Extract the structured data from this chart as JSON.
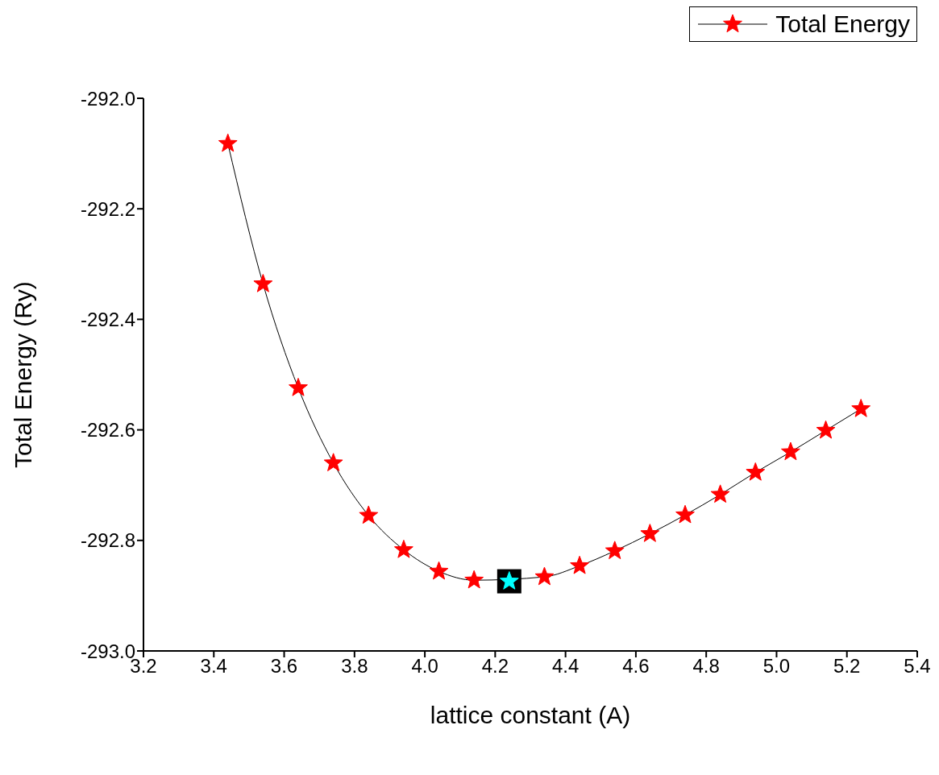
{
  "chart_data": {
    "type": "line",
    "xlabel": "lattice constant (A)",
    "ylabel": "Total Energy (Ry)",
    "xlim": [
      3.2,
      5.4
    ],
    "ylim": [
      -293.0,
      -292.0
    ],
    "xticks": [
      {
        "value": 3.2,
        "label": "3.2"
      },
      {
        "value": 3.4,
        "label": "3.4"
      },
      {
        "value": 3.6,
        "label": "3.6"
      },
      {
        "value": 3.8,
        "label": "3.8"
      },
      {
        "value": 4.0,
        "label": "4.0"
      },
      {
        "value": 4.2,
        "label": "4.2"
      },
      {
        "value": 4.4,
        "label": "4.4"
      },
      {
        "value": 4.6,
        "label": "4.6"
      },
      {
        "value": 4.8,
        "label": "4.8"
      },
      {
        "value": 5.0,
        "label": "5.0"
      },
      {
        "value": 5.2,
        "label": "5.2"
      },
      {
        "value": 5.4,
        "label": "5.4"
      }
    ],
    "yticks": [
      {
        "value": -293.0,
        "label": "-293.0"
      },
      {
        "value": -292.8,
        "label": "-292.8"
      },
      {
        "value": -292.6,
        "label": "-292.6"
      },
      {
        "value": -292.4,
        "label": "-292.4"
      },
      {
        "value": -292.2,
        "label": "-292.2"
      },
      {
        "value": -292.0,
        "label": "-292.0"
      }
    ],
    "grid": false,
    "legend": "top right",
    "marker": "star",
    "line_style": "solid",
    "series": [
      {
        "name": "Total Energy",
        "color": "#ff0000",
        "x": [
          3.44,
          3.54,
          3.64,
          3.74,
          3.84,
          3.94,
          4.04,
          4.14,
          4.24,
          4.34,
          4.44,
          4.54,
          4.64,
          4.74,
          4.84,
          4.94,
          5.04,
          5.14,
          5.24
        ],
        "values": [
          -292.082,
          -292.336,
          -292.524,
          -292.66,
          -292.755,
          -292.817,
          -292.856,
          -292.872,
          null,
          -292.866,
          -292.846,
          -292.819,
          -292.788,
          -292.754,
          -292.717,
          -292.677,
          -292.64,
          -292.601,
          -292.562
        ]
      },
      {
        "type": "scatter",
        "color": "#00ffff",
        "x": [
          4.24
        ],
        "values": [
          -292.874
        ]
      }
    ]
  }
}
